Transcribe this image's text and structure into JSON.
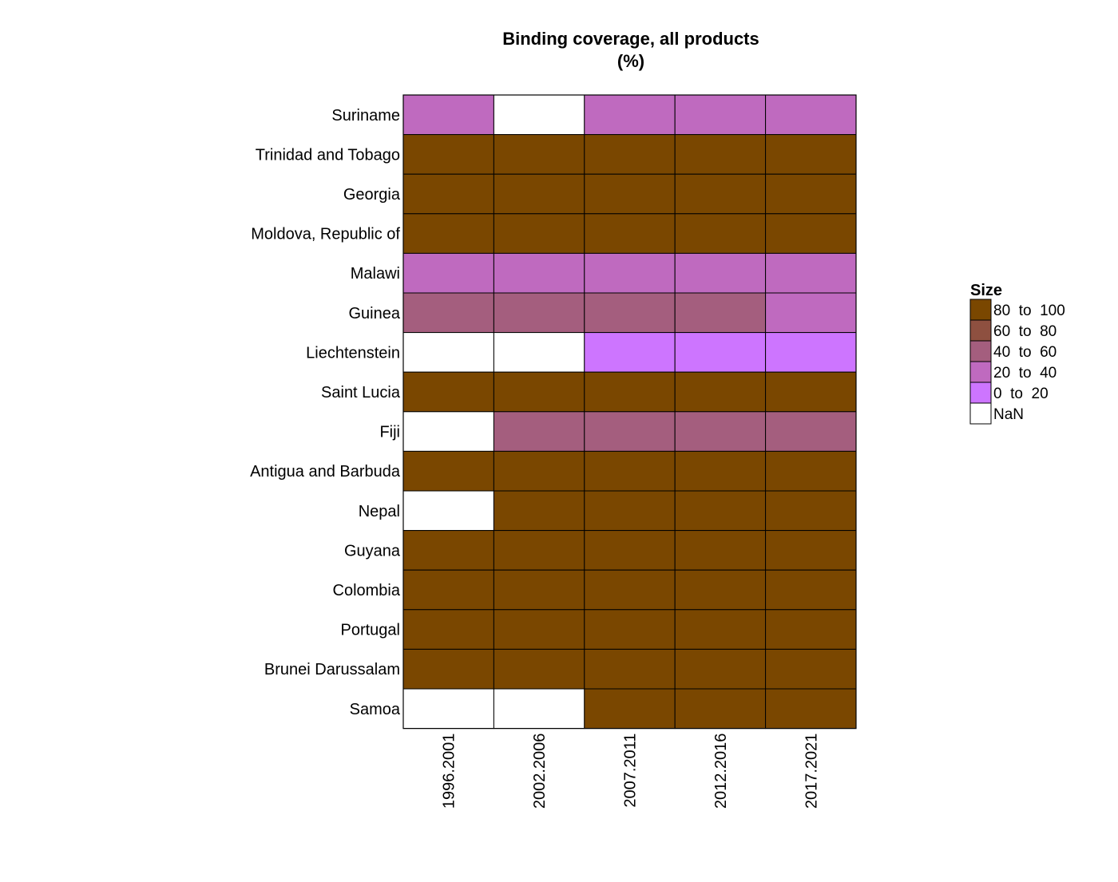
{
  "chart_data": {
    "type": "heatmap",
    "title": "Binding coverage, all products",
    "subtitle": "(%)",
    "columns": [
      "1996.2001",
      "2002.2006",
      "2007.2011",
      "2012.2016",
      "2017.2021"
    ],
    "rows": [
      "Suriname",
      "Trinidad and Tobago",
      "Georgia",
      "Moldova, Republic of",
      "Malawi",
      "Guinea",
      "Liechtenstein",
      "Saint Lucia",
      "Fiji",
      "Antigua and Barbuda",
      "Nepal",
      "Guyana",
      "Colombia",
      "Portugal",
      "Brunei Darussalam",
      "Samoa"
    ],
    "cells": [
      [
        "20 to 40",
        "NaN",
        "20 to 40",
        "20 to 40",
        "20 to 40"
      ],
      [
        "80 to 100",
        "80 to 100",
        "80 to 100",
        "80 to 100",
        "80 to 100"
      ],
      [
        "80 to 100",
        "80 to 100",
        "80 to 100",
        "80 to 100",
        "80 to 100"
      ],
      [
        "80 to 100",
        "80 to 100",
        "80 to 100",
        "80 to 100",
        "80 to 100"
      ],
      [
        "20 to 40",
        "20 to 40",
        "20 to 40",
        "20 to 40",
        "20 to 40"
      ],
      [
        "40 to 60",
        "40 to 60",
        "40 to 60",
        "40 to 60",
        "20 to 40"
      ],
      [
        "NaN",
        "NaN",
        "0 to 20",
        "0 to 20",
        "0 to 20"
      ],
      [
        "80 to 100",
        "80 to 100",
        "80 to 100",
        "80 to 100",
        "80 to 100"
      ],
      [
        "NaN",
        "40 to 60",
        "40 to 60",
        "40 to 60",
        "40 to 60"
      ],
      [
        "80 to 100",
        "80 to 100",
        "80 to 100",
        "80 to 100",
        "80 to 100"
      ],
      [
        "NaN",
        "80 to 100",
        "80 to 100",
        "80 to 100",
        "80 to 100"
      ],
      [
        "80 to 100",
        "80 to 100",
        "80 to 100",
        "80 to 100",
        "80 to 100"
      ],
      [
        "80 to 100",
        "80 to 100",
        "80 to 100",
        "80 to 100",
        "80 to 100"
      ],
      [
        "80 to 100",
        "80 to 100",
        "80 to 100",
        "80 to 100",
        "80 to 100"
      ],
      [
        "80 to 100",
        "80 to 100",
        "80 to 100",
        "80 to 100",
        "80 to 100"
      ],
      [
        "NaN",
        "NaN",
        "80 to 100",
        "80 to 100",
        "80 to 100"
      ]
    ],
    "legend": {
      "title": "Size",
      "placement": "right",
      "entries": [
        {
          "label": "80  to  100",
          "category": "80 to 100",
          "color": "#7a4700"
        },
        {
          "label": "60  to  80",
          "category": "60 to 80",
          "color": "#8e5040"
        },
        {
          "label": "40  to  60",
          "category": "40 to 60",
          "color": "#a45e7e"
        },
        {
          "label": "20  to  40",
          "category": "20 to 40",
          "color": "#bf6abf"
        },
        {
          "label": "0  to  20",
          "category": "0 to 20",
          "color": "#cd75ff"
        },
        {
          "label": "NaN",
          "category": "NaN",
          "color": "#ffffff"
        }
      ]
    },
    "grid": false
  }
}
